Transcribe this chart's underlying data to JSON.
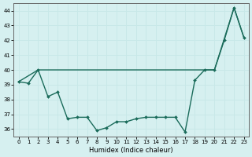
{
  "xlabel": "Humidex (Indice chaleur)",
  "background_color": "#d6f0f0",
  "grid_color": "#c8e8e8",
  "line_color": "#1a6b5a",
  "x_upper": [
    0,
    2,
    3,
    19,
    20,
    22,
    23
  ],
  "y_upper": [
    39.2,
    40.0,
    40.0,
    40.0,
    40.0,
    44.2,
    42.2
  ],
  "x_lower": [
    0,
    1,
    2,
    3,
    4,
    5,
    6,
    7,
    8,
    9,
    10,
    11,
    12,
    13,
    14,
    15,
    16,
    17,
    18,
    19,
    20,
    21,
    22,
    23
  ],
  "y_lower": [
    39.2,
    39.1,
    40.0,
    38.2,
    38.5,
    36.7,
    36.8,
    36.8,
    35.9,
    36.1,
    36.5,
    36.5,
    36.7,
    36.8,
    36.8,
    36.8,
    36.8,
    35.8,
    39.3,
    40.0,
    40.0,
    42.0,
    44.2,
    42.2
  ],
  "ylim": [
    35.5,
    44.5
  ],
  "yticks": [
    36,
    37,
    38,
    39,
    40,
    41,
    42,
    43,
    44
  ],
  "xticks": [
    0,
    1,
    2,
    3,
    4,
    5,
    6,
    7,
    8,
    9,
    10,
    11,
    12,
    13,
    14,
    15,
    16,
    17,
    18,
    19,
    20,
    21,
    22,
    23
  ]
}
